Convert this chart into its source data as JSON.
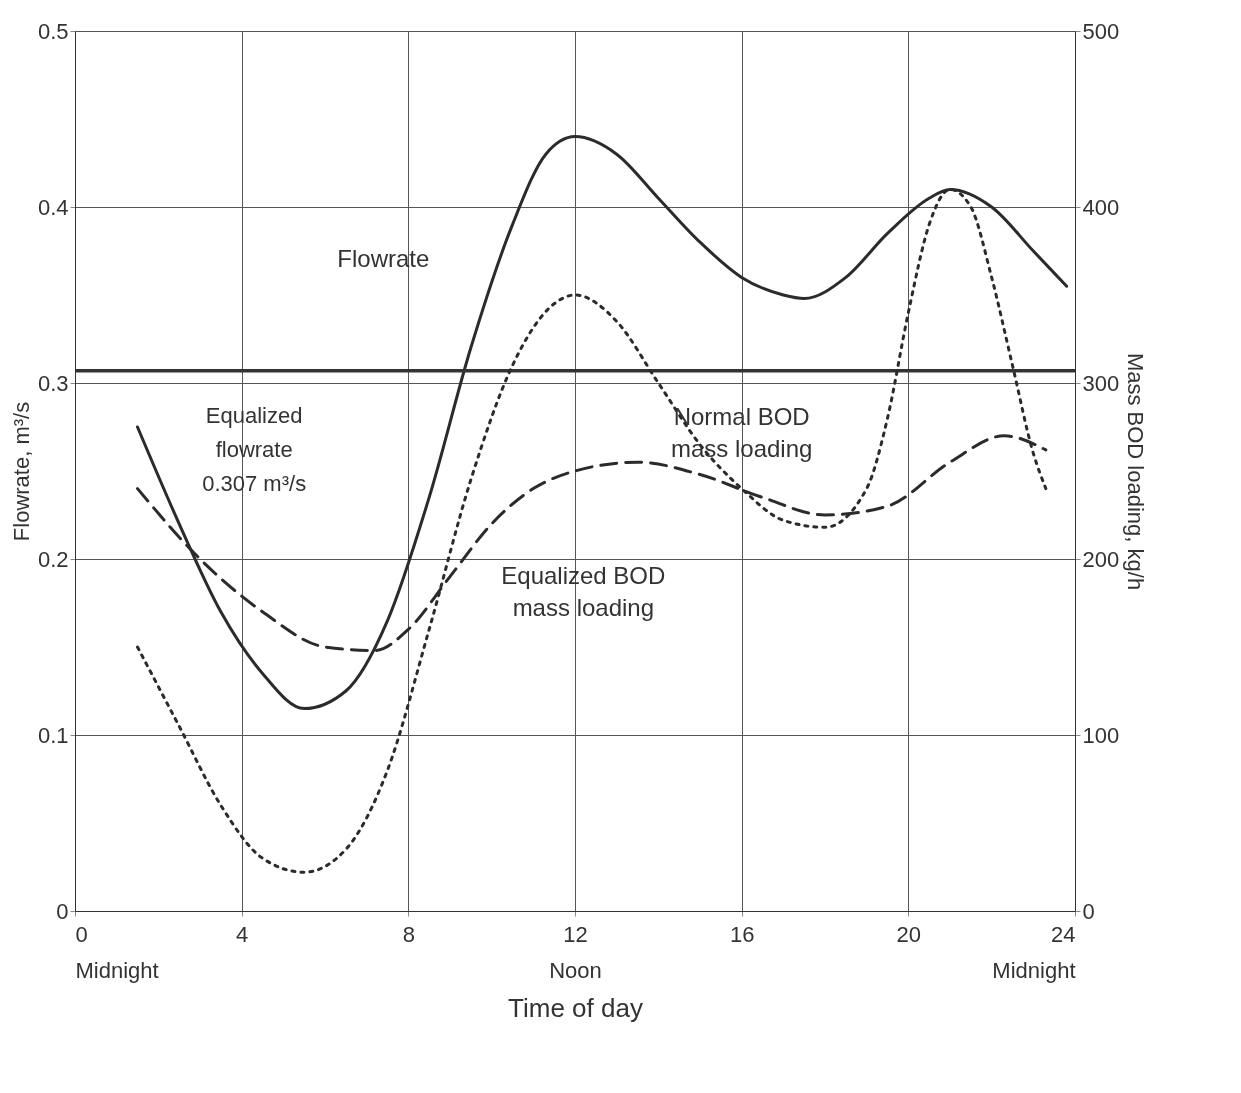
{
  "chart_data": {
    "type": "line",
    "xlabel": "Time of day",
    "ylabel": "Flowrate, m³/s",
    "y2label": "Mass BOD loading, kg/h",
    "xlim": [
      0,
      24
    ],
    "xticks": [
      {
        "value": 0,
        "label": "0\nMidnight"
      },
      4,
      8,
      {
        "value": 12,
        "label": "12\nNoon"
      },
      16,
      20,
      {
        "value": 24,
        "label": "24\nMidnight"
      }
    ],
    "ylim": [
      0,
      0.5
    ],
    "yticks": [
      0,
      0.1,
      0.2,
      0.3,
      0.4,
      0.5
    ],
    "y2lim": [
      0,
      500
    ],
    "y2ticks": [
      0,
      100,
      200,
      300,
      400,
      500
    ],
    "grid": true,
    "ref_lines": [
      {
        "axis": "y",
        "value": 0.307,
        "label": "Equalized\nflowrate\n0.307 m³/s",
        "color": "#333333"
      }
    ],
    "series": [
      {
        "name": "Flowrate",
        "color": "#2b2b2b",
        "line_style": "solid",
        "x": [
          1.5,
          2.5,
          3.5,
          4.5,
          5.5,
          6.5,
          7.5,
          8.5,
          9.5,
          10.5,
          11.3,
          12,
          13,
          14,
          15,
          16,
          17,
          17.5,
          18.5,
          19.5,
          20.5,
          21,
          22,
          23,
          23.8
        ],
        "values": [
          0.275,
          0.22,
          0.17,
          0.135,
          0.115,
          0.125,
          0.165,
          0.235,
          0.32,
          0.39,
          0.43,
          0.44,
          0.43,
          0.405,
          0.38,
          0.36,
          0.35,
          0.348,
          0.36,
          0.385,
          0.405,
          0.41,
          0.4,
          0.375,
          0.355
        ]
      },
      {
        "name": "Normal BOD mass loading",
        "color": "#2b2b2b",
        "line_style": "dotted",
        "axis": "y2",
        "x": [
          1.5,
          2.5,
          3.5,
          4.5,
          5.5,
          6.5,
          7.5,
          8.5,
          9.5,
          10.5,
          11.5,
          12,
          13,
          14,
          15,
          16,
          17,
          18,
          19,
          19.5,
          20,
          20.5,
          21,
          21.5,
          22,
          22.5,
          23,
          23.3
        ],
        "values": [
          150,
          105,
          60,
          30,
          22,
          35,
          80,
          160,
          245,
          310,
          345,
          350,
          335,
          300,
          265,
          240,
          222,
          218,
          240,
          280,
          340,
          390,
          410,
          400,
          360,
          310,
          260,
          240
        ]
      },
      {
        "name": "Equalized BOD mass loading",
        "color": "#2b2b2b",
        "line_style": "dashed",
        "axis": "y2",
        "x": [
          1.5,
          3,
          4.5,
          6,
          7.2,
          8,
          9,
          10,
          11,
          12,
          13.5,
          15,
          16.5,
          18,
          19.5,
          21,
          22.3,
          23.3
        ],
        "values": [
          240,
          200,
          170,
          150,
          148,
          160,
          190,
          220,
          240,
          250,
          255,
          248,
          235,
          225,
          230,
          255,
          270,
          262
        ]
      }
    ]
  }
}
